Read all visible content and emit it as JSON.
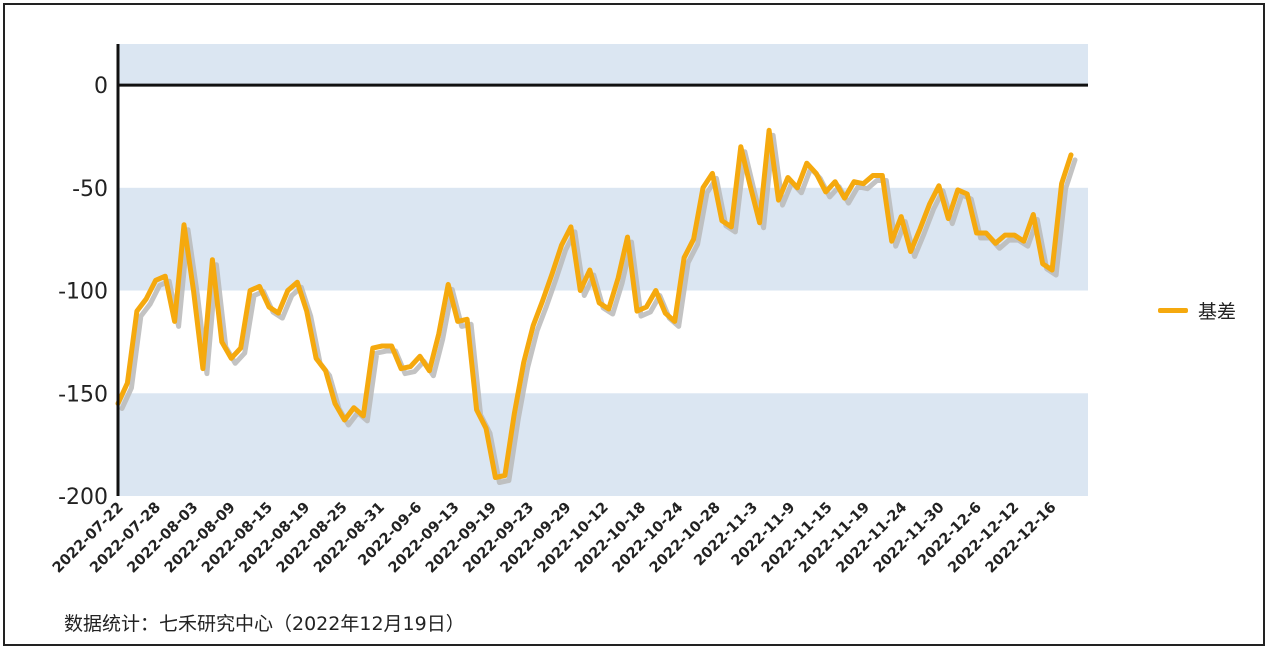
{
  "footnote": "数据统计：七禾研究中心（2022年12月19日）",
  "colors": {
    "line": "#f5a90e",
    "band": "#dbe6f2",
    "shadow": "#b8b8b8",
    "axis": "#111111"
  },
  "chart_data": {
    "type": "line",
    "ylim": [
      -200,
      20
    ],
    "yticks": [
      0,
      -50,
      -100,
      -150,
      -200
    ],
    "tick_labels": [
      "2022-07-22",
      "2022-07-28",
      "2022-08-03",
      "2022-08-09",
      "2022-08-15",
      "2022-08-19",
      "2022-08-25",
      "2022-08-31",
      "2022-09-6",
      "2022-09-13",
      "2022-09-19",
      "2022-09-23",
      "2022-09-29",
      "2022-10-12",
      "2022-10-18",
      "2022-10-24",
      "2022-10-28",
      "2022-11-3",
      "2022-11-9",
      "2022-11-15",
      "2022-11-19",
      "2022-11-24",
      "2022-11-30",
      "2022-12-6",
      "2022-12-12",
      "2022-12-16"
    ],
    "series": [
      {
        "name": "基差",
        "values": [
          -155,
          -145,
          -110,
          -104,
          -95,
          -93,
          -115,
          -68,
          -100,
          -138,
          -85,
          -125,
          -133,
          -128,
          -100,
          -98,
          -108,
          -111,
          -100,
          -96,
          -110,
          -133,
          -139,
          -155,
          -163,
          -157,
          -161,
          -128,
          -127,
          -127,
          -138,
          -137,
          -132,
          -139,
          -121,
          -97,
          -115,
          -114,
          -158,
          -167,
          -191,
          -190,
          -160,
          -135,
          -117,
          -105,
          -92,
          -78,
          -69,
          -100,
          -90,
          -106,
          -109,
          -94,
          -74,
          -110,
          -108,
          -100,
          -111,
          -115,
          -84,
          -75,
          -50,
          -43,
          -66,
          -69,
          -30,
          -49,
          -67,
          -22,
          -56,
          -45,
          -50,
          -38,
          -43,
          -52,
          -47,
          -55,
          -47,
          -48,
          -44,
          -44,
          -76,
          -64,
          -81,
          -70,
          -58,
          -49,
          -65,
          -51,
          -53,
          -72,
          -72,
          -77,
          -73,
          -73,
          -76,
          -63,
          -87,
          -90,
          -48,
          -34
        ]
      }
    ]
  }
}
